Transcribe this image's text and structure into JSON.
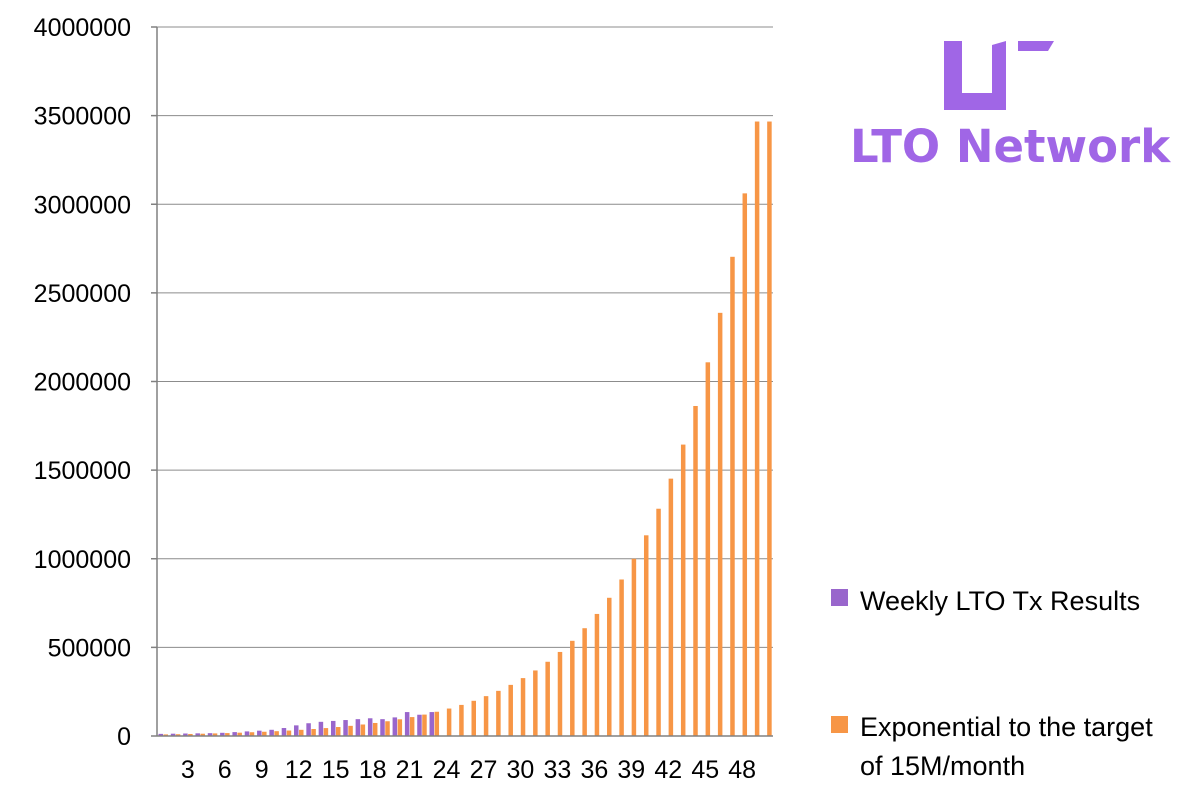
{
  "chart_data": {
    "type": "bar",
    "ylim": [
      0,
      4000000
    ],
    "y_ticks": [
      0,
      500000,
      1000000,
      1500000,
      2000000,
      2500000,
      3000000,
      3500000,
      4000000
    ],
    "y_tick_labels": [
      "0",
      "500000",
      "1000000",
      "1500000",
      "2000000",
      "2500000",
      "3000000",
      "3500000",
      "4000000"
    ],
    "x_tick_labels": [
      "3",
      "6",
      "9",
      "12",
      "15",
      "18",
      "21",
      "24",
      "27",
      "30",
      "33",
      "36",
      "39",
      "42",
      "45",
      "48"
    ],
    "x_tick_categories": [
      3,
      6,
      9,
      12,
      15,
      18,
      21,
      24,
      27,
      30,
      33,
      36,
      39,
      42,
      45,
      48
    ],
    "categories": [
      1,
      2,
      3,
      4,
      5,
      6,
      7,
      8,
      9,
      10,
      11,
      12,
      13,
      14,
      15,
      16,
      17,
      18,
      19,
      20,
      21,
      22,
      23,
      24,
      25,
      26,
      27,
      28,
      29,
      30,
      31,
      32,
      33,
      34,
      35,
      36,
      37,
      38,
      39,
      40,
      41,
      42,
      43,
      44,
      45,
      46,
      47,
      48,
      49,
      50
    ],
    "grid": true,
    "legend_position": "right",
    "series": [
      {
        "name": "Weekly LTO Tx Results",
        "color": "#9966cc",
        "values": [
          12000,
          13000,
          14000,
          15000,
          16000,
          18000,
          22000,
          26000,
          30000,
          35000,
          45000,
          60000,
          72000,
          80000,
          85000,
          90000,
          95000,
          100000,
          95000,
          105000,
          135000,
          120000,
          135000,
          null,
          null,
          null,
          null,
          null,
          null,
          null,
          null,
          null,
          null,
          null,
          null,
          null,
          null,
          null,
          null,
          null,
          null,
          null,
          null,
          null,
          null,
          null,
          null,
          null,
          null,
          null
        ]
      },
      {
        "name": "Exponential to the target of 15M/month",
        "color": "#f79646",
        "values": [
          8900,
          10000,
          11400,
          12900,
          14600,
          16500,
          18700,
          21200,
          24000,
          27200,
          30800,
          34900,
          39500,
          44700,
          50600,
          57300,
          64900,
          73500,
          83200,
          94200,
          106700,
          120800,
          136800,
          154900,
          175400,
          198600,
          224900,
          254700,
          288400,
          326600,
          369800,
          418800,
          474200,
          537000,
          608100,
          688600,
          779800,
          883000,
          999900,
          1132300,
          1282200,
          1451900,
          1644100,
          1861800,
          2108300,
          2387400,
          2703500,
          3061400,
          3466700,
          3466700
        ]
      }
    ]
  },
  "legend": {
    "series1_label": "Weekly LTO Tx Results",
    "series2_line1": "Exponential to the target",
    "series2_line2": "of 15M/month"
  },
  "logo": {
    "text": "LTO Network",
    "color": "#a066e6"
  }
}
